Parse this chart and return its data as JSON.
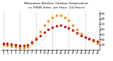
{
  "title": "Milwaukee Weather Outdoor Temperature vs THSW Index per Hour (24 Hours)",
  "title_line1": "Milwaukee Weather Outdoor Temperature",
  "title_line2": "vs THSW Index  per Hour  (24 Hours)",
  "hours": [
    0,
    1,
    2,
    3,
    4,
    5,
    6,
    7,
    8,
    9,
    10,
    11,
    12,
    13,
    14,
    15,
    16,
    17,
    18,
    19,
    20,
    21,
    22,
    23
  ],
  "temp": [
    33,
    32,
    31,
    30,
    29,
    28,
    30,
    35,
    41,
    48,
    54,
    59,
    63,
    66,
    67,
    65,
    62,
    58,
    53,
    48,
    45,
    42,
    39,
    37
  ],
  "thsw": [
    30,
    29,
    27,
    26,
    25,
    24,
    26,
    33,
    43,
    56,
    67,
    76,
    82,
    86,
    86,
    83,
    77,
    68,
    59,
    51,
    45,
    40,
    36,
    33
  ],
  "temp_color": "#cc0000",
  "thsw_color": "#ff8800",
  "bg_color": "#ffffff",
  "grid_color": "#999999",
  "ylim": [
    20,
    95
  ],
  "ytick_values": [
    30,
    40,
    50,
    60,
    70,
    80,
    90
  ],
  "grid_x": [
    0,
    4,
    8,
    12,
    16,
    20
  ],
  "title_fontsize": 3.2,
  "marker_size": 1.5,
  "tick_labelsize": 2.5,
  "ytick_labelsize": 2.8
}
